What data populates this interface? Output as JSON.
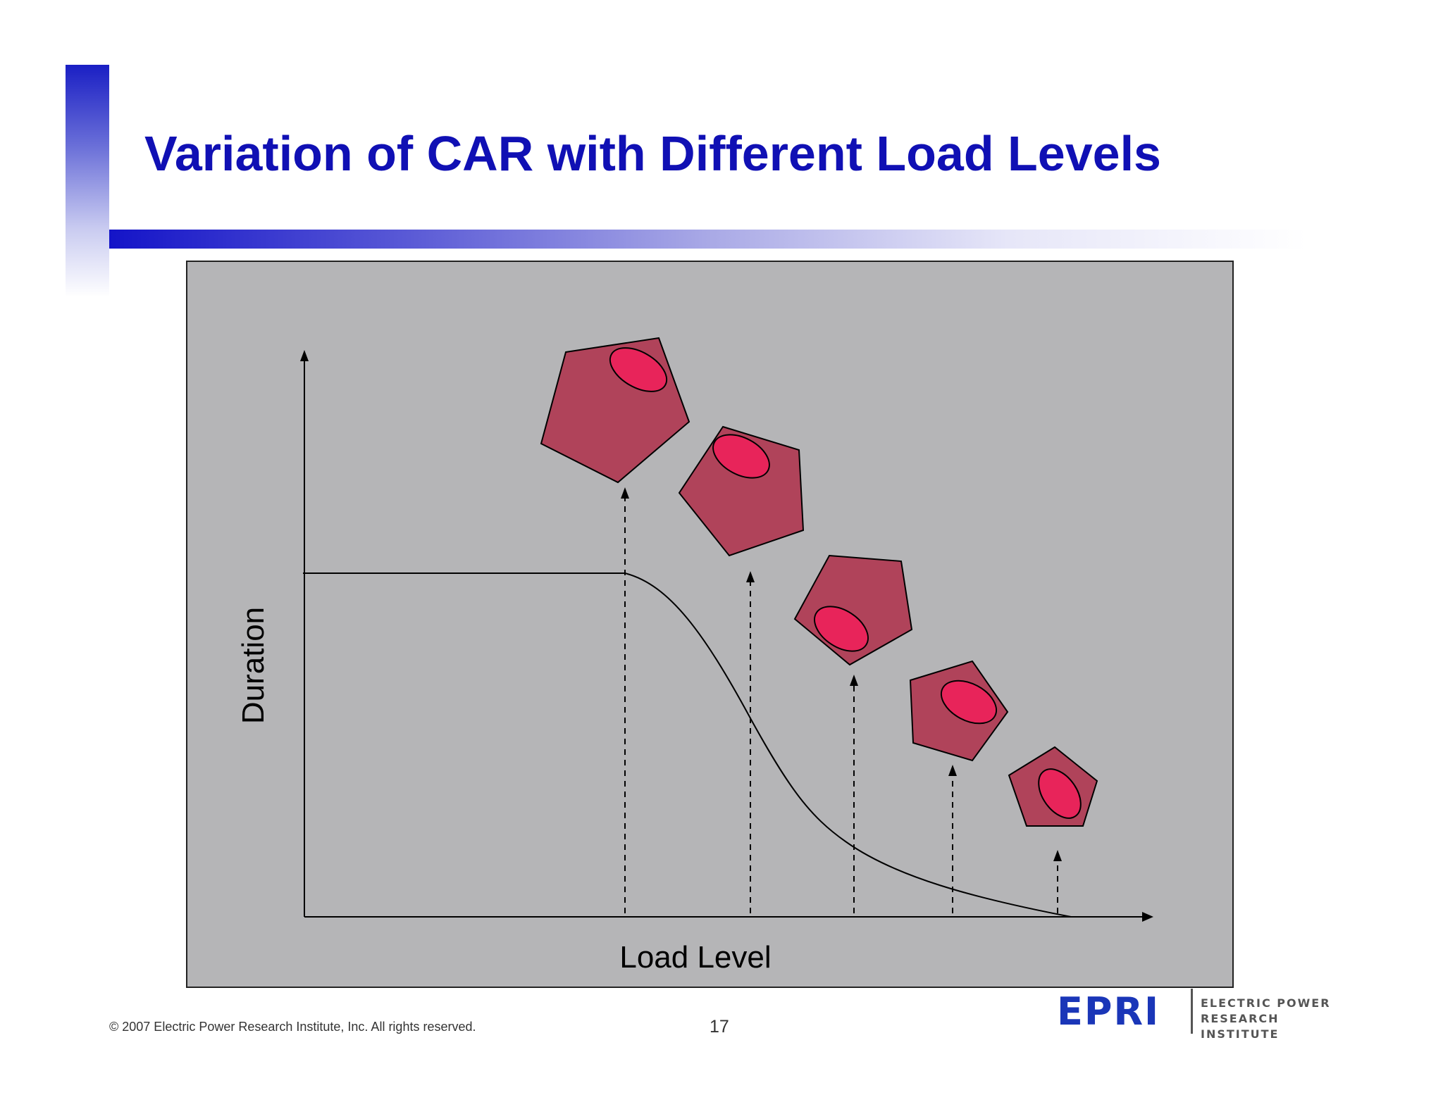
{
  "slide": {
    "title": "Variation of CAR with Different Load Levels",
    "copyright": "© 2007 Electric Power Research Institute, Inc. All rights reserved.",
    "page_number": "17",
    "logo": {
      "mark": "EPRI",
      "line1": "ELECTRIC POWER",
      "line2": "RESEARCH INSTITUTE"
    }
  },
  "diagram": {
    "x_label": "Load Level",
    "y_label": "Duration",
    "colors": {
      "background": "#b5b5b7",
      "pentagon": "#b0435a",
      "ellipse": "#e8245a"
    }
  }
}
